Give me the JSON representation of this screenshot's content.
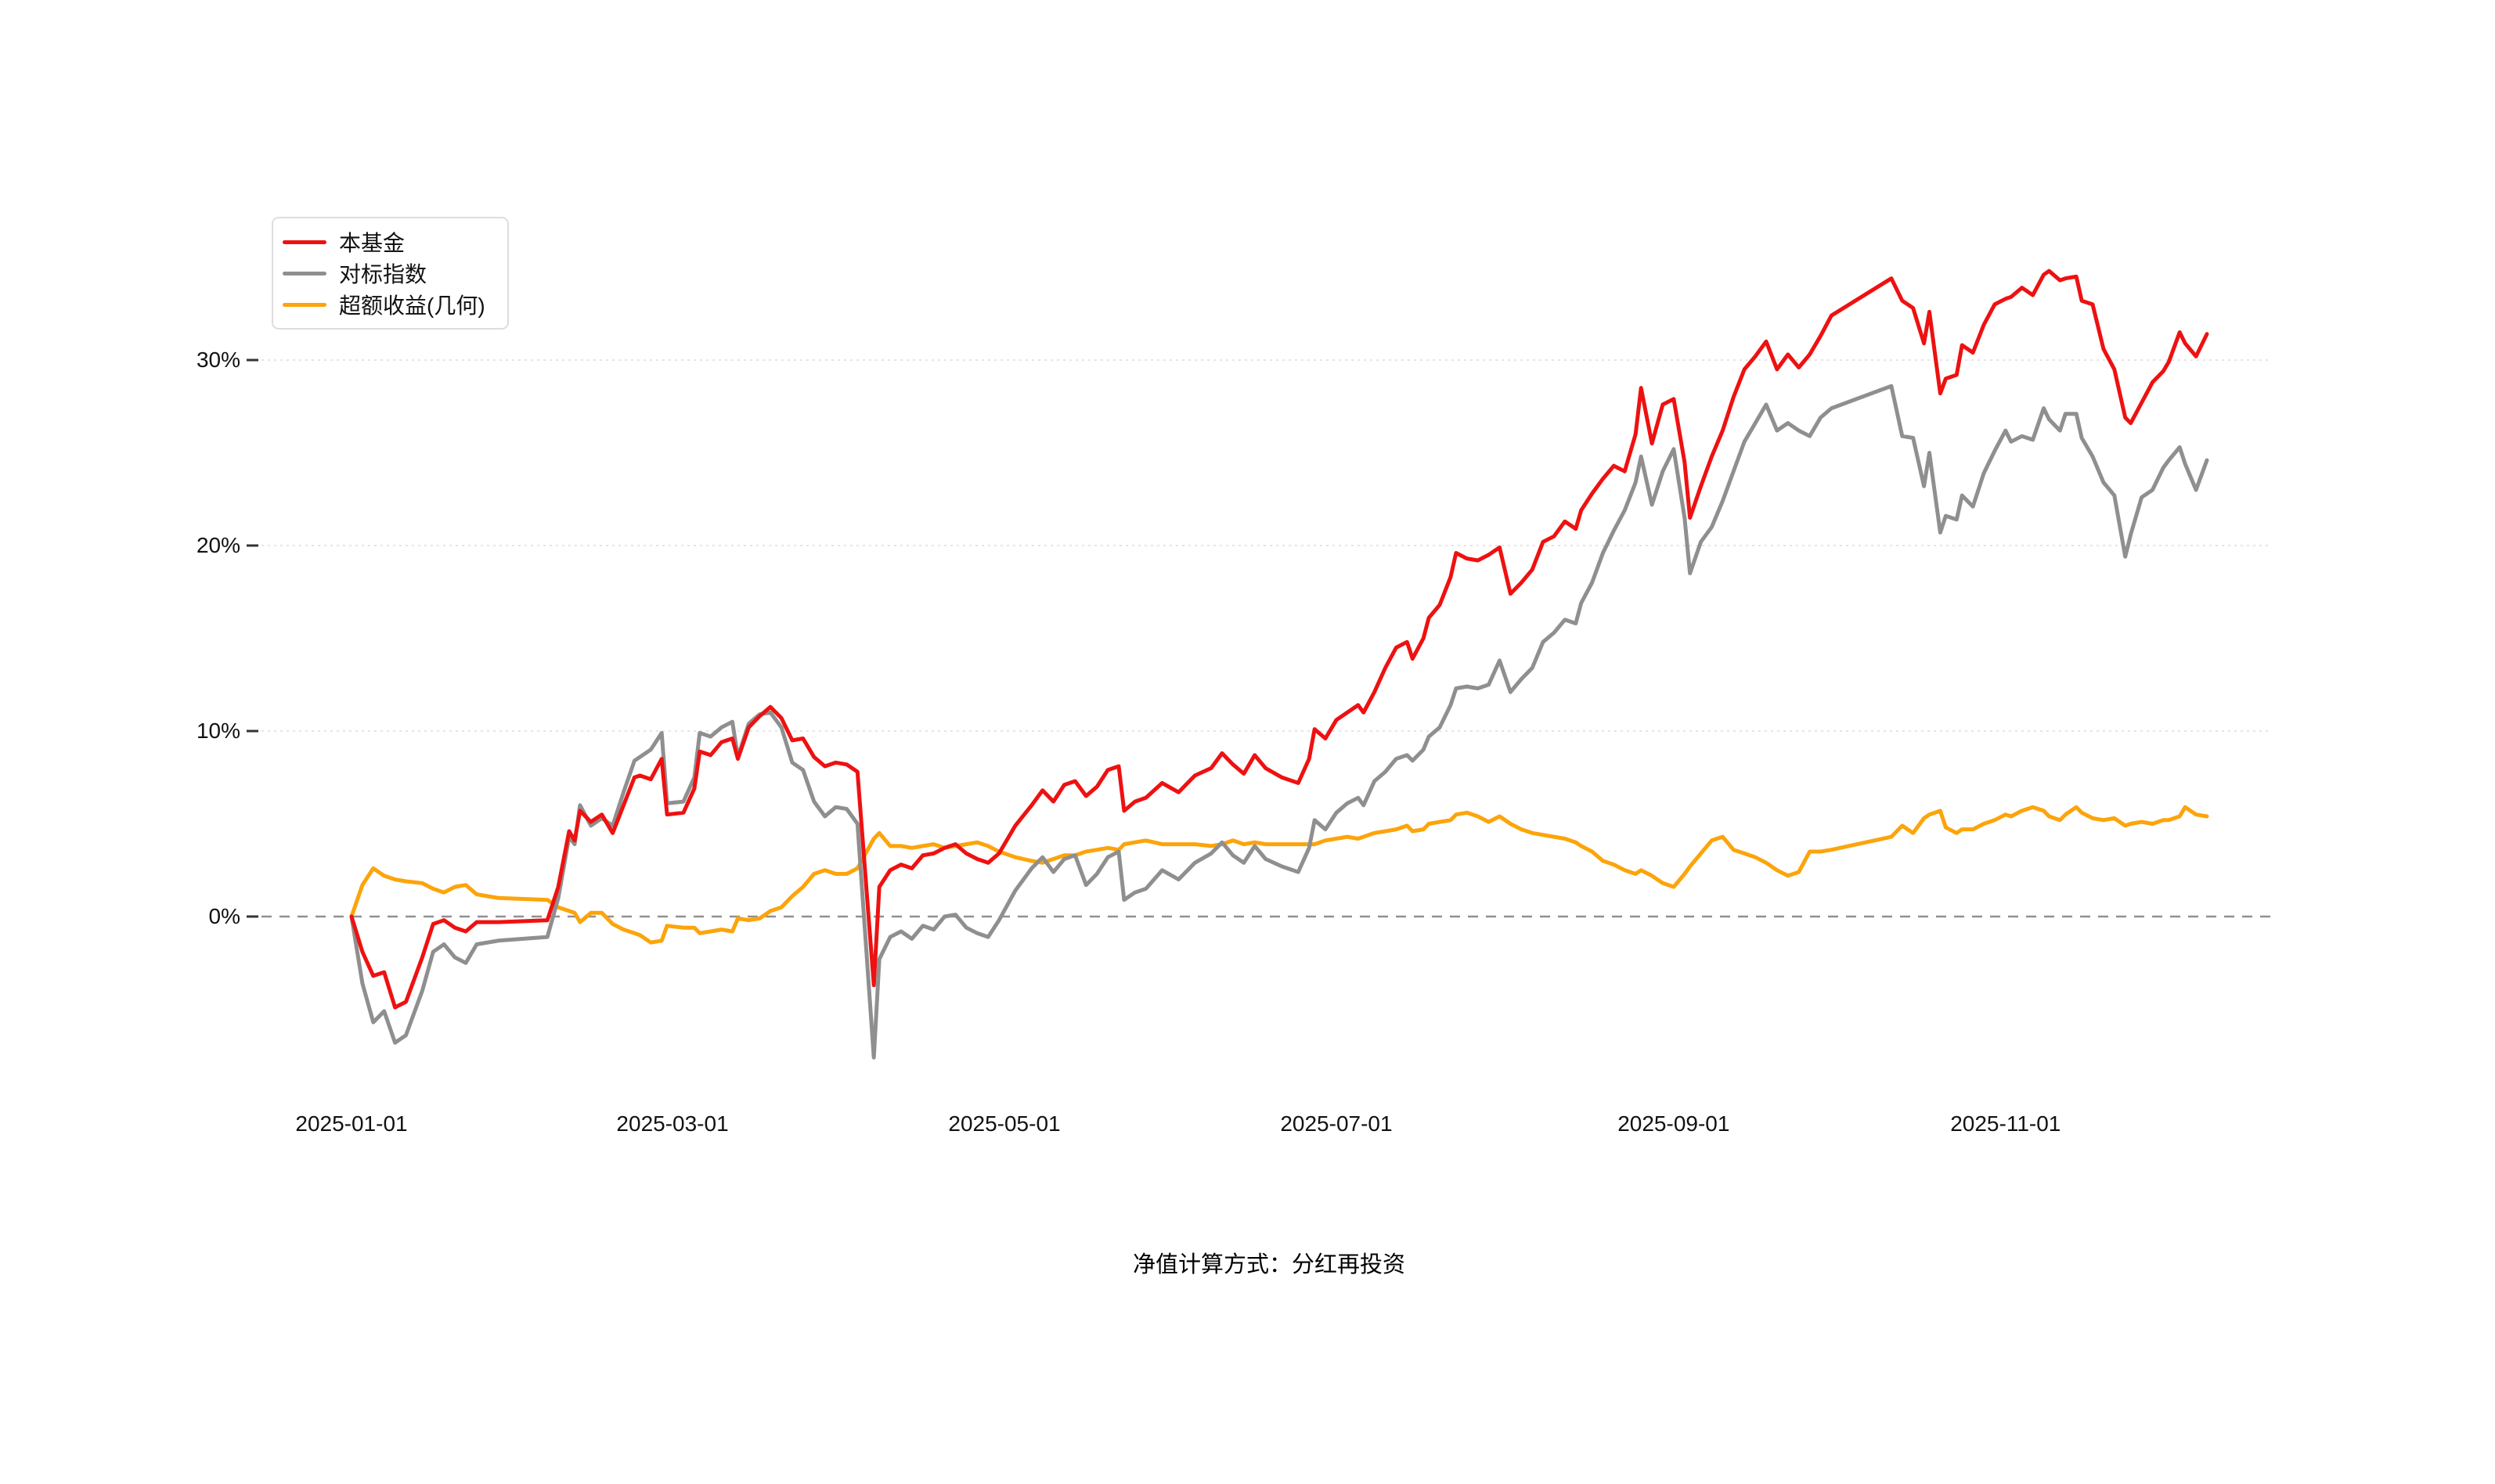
{
  "page": {
    "background": "#ffffff"
  },
  "legend": {
    "items": [
      {
        "label": "本基金"
      },
      {
        "label": "对标指数"
      },
      {
        "label": "超额收益(几何)"
      }
    ]
  },
  "footnote": "净值计算方式：分红再投资",
  "colors": {
    "fund": "#ee1111",
    "benchmark": "#8f8f8f",
    "excess": "#fca40a",
    "gridline": "#e5e5e5",
    "zero_line": "#909090",
    "tick": "#333333",
    "label": "#111111"
  },
  "chart_data": {
    "type": "line",
    "title": "",
    "xlabel": "",
    "ylabel": "",
    "legend_position": "top-left",
    "grid": {
      "horizontal_dotted_at": [
        10,
        20,
        30
      ],
      "zero_dashed": true
    },
    "x_axis": {
      "tick_days": [
        0,
        59,
        120,
        181,
        243,
        304
      ],
      "tick_labels": [
        "2025-01-01",
        "2025-03-01",
        "2025-05-01",
        "2025-07-01",
        "2025-09-01",
        "2025-11-01"
      ],
      "range_days": [
        0,
        341
      ]
    },
    "y_axis": {
      "ticks": [
        0,
        10,
        20,
        30
      ],
      "tick_labels": [
        "0%",
        "10%",
        "20%",
        "30%"
      ],
      "unit": "%",
      "ylim": [
        -8.5,
        35.5
      ]
    },
    "x_days": [
      0,
      2,
      4,
      6,
      8,
      10,
      13,
      15,
      17,
      19,
      21,
      23,
      27,
      36,
      38,
      40,
      41,
      42,
      44,
      46,
      48,
      50,
      52,
      53,
      55,
      57,
      58,
      61,
      63,
      64,
      66,
      68,
      70,
      71,
      73,
      75,
      77,
      79,
      81,
      83,
      85,
      87,
      89,
      91,
      93,
      96,
      97,
      99,
      101,
      103,
      105,
      107,
      109,
      111,
      113,
      115,
      117,
      119,
      122,
      125,
      127,
      129,
      131,
      133,
      135,
      137,
      139,
      141,
      142,
      144,
      146,
      149,
      152,
      155,
      158,
      160,
      162,
      164,
      166,
      168,
      171,
      174,
      176,
      177,
      179,
      181,
      183,
      185,
      186,
      188,
      190,
      192,
      194,
      195,
      197,
      198,
      200,
      202,
      203,
      205,
      207,
      209,
      211,
      213,
      215,
      217,
      219,
      221,
      223,
      225,
      226,
      228,
      230,
      232,
      234,
      236,
      237,
      239,
      241,
      243,
      245,
      246,
      248,
      250,
      252,
      254,
      256,
      258,
      260,
      262,
      264,
      266,
      268,
      270,
      272,
      283,
      285,
      287,
      289,
      290,
      292,
      293,
      295,
      296,
      298,
      300,
      302,
      304,
      305,
      307,
      309,
      311,
      312,
      314,
      315,
      317,
      318,
      320,
      322,
      324,
      326,
      327,
      329,
      331,
      333,
      334,
      336,
      337,
      339,
      341
    ],
    "series": [
      {
        "name": "本基金",
        "color": "#ee1111",
        "values": [
          0,
          -1.9,
          -3.2,
          -3.0,
          -4.9,
          -4.6,
          -2.2,
          -0.4,
          -0.2,
          -0.6,
          -0.8,
          -0.3,
          -0.3,
          -0.2,
          1.6,
          4.6,
          4.1,
          5.7,
          5.1,
          5.5,
          4.5,
          6.0,
          7.5,
          7.6,
          7.4,
          8.5,
          5.5,
          5.6,
          6.9,
          8.9,
          8.7,
          9.4,
          9.6,
          8.5,
          10.2,
          10.8,
          11.3,
          10.7,
          9.5,
          9.6,
          8.6,
          8.1,
          8.3,
          8.2,
          7.8,
          -3.7,
          1.6,
          2.5,
          2.8,
          2.6,
          3.3,
          3.4,
          3.7,
          3.9,
          3.4,
          3.1,
          2.9,
          3.4,
          4.9,
          6.0,
          6.8,
          6.2,
          7.1,
          7.3,
          6.5,
          7.0,
          7.9,
          8.1,
          5.7,
          6.2,
          6.4,
          7.2,
          6.7,
          7.6,
          8.0,
          8.8,
          8.2,
          7.7,
          8.7,
          8.0,
          7.5,
          7.2,
          8.5,
          10.1,
          9.6,
          10.6,
          11.0,
          11.4,
          11.0,
          12.1,
          13.4,
          14.5,
          14.8,
          13.9,
          15.0,
          16.1,
          16.8,
          18.3,
          19.6,
          19.3,
          19.2,
          19.5,
          19.9,
          17.4,
          18.0,
          18.7,
          20.2,
          20.5,
          21.3,
          20.9,
          21.9,
          22.8,
          23.6,
          24.3,
          24.0,
          26.0,
          28.5,
          25.5,
          27.6,
          27.9,
          24.5,
          21.5,
          23.2,
          24.8,
          26.2,
          28.0,
          29.5,
          30.2,
          31.0,
          29.5,
          30.3,
          29.6,
          30.3,
          31.3,
          32.4,
          34.4,
          33.2,
          32.8,
          30.9,
          32.6,
          28.2,
          29.0,
          29.2,
          30.8,
          30.4,
          31.9,
          33.0,
          33.3,
          33.4,
          33.9,
          33.5,
          34.6,
          34.8,
          34.3,
          34.4,
          34.5,
          33.2,
          33.0,
          30.6,
          29.5,
          26.9,
          26.6,
          27.7,
          28.8,
          29.4,
          29.9,
          31.5,
          30.9,
          30.2,
          31.4
        ]
      },
      {
        "name": "对标指数",
        "color": "#8f8f8f",
        "values": [
          0,
          -3.6,
          -5.7,
          -5.1,
          -6.8,
          -6.4,
          -4.0,
          -1.9,
          -1.5,
          -2.2,
          -2.5,
          -1.5,
          -1.3,
          -1.1,
          1.0,
          4.3,
          3.9,
          6.0,
          4.9,
          5.3,
          4.9,
          6.7,
          8.4,
          8.6,
          9.0,
          9.9,
          6.1,
          6.2,
          7.5,
          9.9,
          9.7,
          10.2,
          10.5,
          8.6,
          10.4,
          10.9,
          11.0,
          10.2,
          8.3,
          7.9,
          6.2,
          5.4,
          5.9,
          5.8,
          5.0,
          -7.6,
          -2.3,
          -1.1,
          -0.8,
          -1.2,
          -0.5,
          -0.7,
          0.0,
          0.1,
          -0.6,
          -0.9,
          -1.1,
          -0.2,
          1.4,
          2.6,
          3.2,
          2.4,
          3.1,
          3.3,
          1.7,
          2.3,
          3.2,
          3.5,
          0.9,
          1.3,
          1.5,
          2.5,
          2.0,
          2.9,
          3.4,
          4.0,
          3.3,
          2.9,
          3.8,
          3.1,
          2.7,
          2.4,
          3.7,
          5.2,
          4.7,
          5.6,
          6.1,
          6.4,
          6.0,
          7.3,
          7.8,
          8.5,
          8.7,
          8.4,
          9.0,
          9.7,
          10.2,
          11.4,
          12.3,
          12.4,
          12.3,
          12.5,
          13.8,
          12.1,
          12.8,
          13.4,
          14.8,
          15.3,
          16.0,
          15.8,
          16.9,
          18.0,
          19.6,
          20.8,
          21.9,
          23.4,
          24.8,
          22.2,
          24.0,
          25.2,
          21.5,
          18.5,
          20.2,
          21.0,
          22.4,
          24.0,
          25.6,
          26.6,
          27.6,
          26.2,
          26.6,
          26.2,
          25.9,
          26.9,
          27.4,
          28.6,
          25.9,
          25.8,
          23.2,
          25.0,
          20.7,
          21.6,
          21.4,
          22.7,
          22.1,
          23.9,
          25.1,
          26.2,
          25.6,
          25.9,
          25.7,
          27.4,
          26.8,
          26.2,
          27.1,
          27.1,
          25.8,
          24.8,
          23.4,
          22.7,
          19.4,
          20.6,
          22.6,
          23.0,
          24.2,
          24.6,
          25.3,
          24.4,
          23.0,
          24.6
        ]
      },
      {
        "name": "超额收益(几何)",
        "color": "#fca40a",
        "values": [
          0,
          1.7,
          2.6,
          2.2,
          2.0,
          1.9,
          1.8,
          1.5,
          1.3,
          1.6,
          1.7,
          1.2,
          1.0,
          0.9,
          0.5,
          0.3,
          0.2,
          -0.3,
          0.2,
          0.2,
          -0.4,
          -0.7,
          -0.9,
          -1.0,
          -1.4,
          -1.3,
          -0.5,
          -0.6,
          -0.6,
          -0.9,
          -0.8,
          -0.7,
          -0.8,
          -0.1,
          -0.2,
          -0.1,
          0.3,
          0.5,
          1.1,
          1.6,
          2.3,
          2.5,
          2.3,
          2.3,
          2.6,
          4.2,
          4.5,
          3.8,
          3.8,
          3.7,
          3.8,
          3.9,
          3.7,
          3.8,
          3.9,
          4.0,
          3.8,
          3.5,
          3.2,
          3.0,
          2.9,
          3.1,
          3.3,
          3.3,
          3.5,
          3.6,
          3.7,
          3.6,
          3.9,
          4.0,
          4.1,
          3.9,
          3.9,
          3.9,
          3.8,
          3.9,
          4.1,
          3.9,
          4.0,
          3.9,
          3.9,
          3.9,
          3.9,
          3.9,
          4.1,
          4.2,
          4.3,
          4.2,
          4.3,
          4.5,
          4.6,
          4.7,
          4.9,
          4.6,
          4.7,
          5.0,
          5.1,
          5.2,
          5.5,
          5.6,
          5.4,
          5.1,
          5.4,
          5.0,
          4.7,
          4.5,
          4.4,
          4.3,
          4.2,
          4.0,
          3.8,
          3.5,
          3.0,
          2.8,
          2.5,
          2.3,
          2.5,
          2.2,
          1.8,
          1.6,
          2.3,
          2.7,
          3.4,
          4.1,
          4.3,
          3.6,
          3.4,
          3.2,
          2.9,
          2.5,
          2.2,
          2.4,
          3.5,
          3.5,
          3.6,
          4.3,
          4.9,
          4.5,
          5.3,
          5.5,
          5.7,
          4.8,
          4.5,
          4.7,
          4.7,
          5.0,
          5.2,
          5.5,
          5.4,
          5.7,
          5.9,
          5.7,
          5.4,
          5.2,
          5.5,
          5.9,
          5.6,
          5.3,
          5.2,
          5.3,
          4.9,
          5.0,
          5.1,
          5.0,
          5.2,
          5.2,
          5.4,
          5.9,
          5.5,
          5.4
        ]
      }
    ]
  }
}
